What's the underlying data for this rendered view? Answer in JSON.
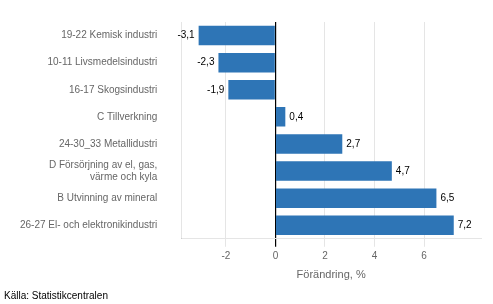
{
  "chart_data": {
    "type": "bar",
    "orientation": "horizontal",
    "categories": [
      "19-22 Kemisk industri",
      "10-11 Livsmedelsindustri",
      "16-17 Skogsindustri",
      "C Tillverkning",
      "24-30_33 Metallidustri",
      "D Försörjning av el, gas,\nvärme och kyla",
      "B Utvinning av mineral",
      "26-27 El- och elektronikindustri"
    ],
    "values": [
      -3.1,
      -2.3,
      -1.9,
      0.4,
      2.7,
      4.7,
      6.5,
      7.2
    ],
    "value_labels": [
      "-3,1",
      "-2,3",
      "-1,9",
      "0,4",
      "2,7",
      "4,7",
      "6,5",
      "7,2"
    ],
    "data_labels": true,
    "color": "#2E75B6",
    "xlabel": "Förändring, %",
    "xlim": [
      -3.8,
      8.3
    ],
    "xticks": [
      -2,
      0,
      2,
      4,
      6
    ],
    "grid": true,
    "annotations": [
      "Källa: Statistikcentralen"
    ]
  }
}
